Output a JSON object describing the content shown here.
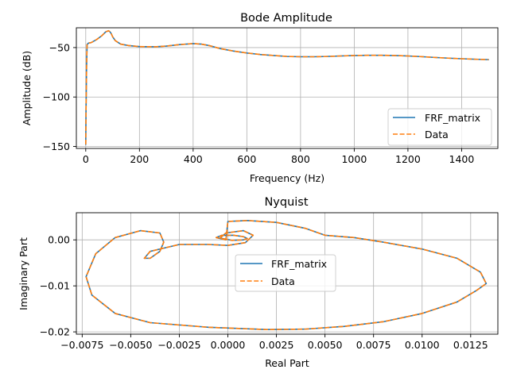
{
  "chart_data": [
    {
      "type": "line",
      "title": "Bode Amplitude",
      "xlabel": "Frequency (Hz)",
      "ylabel": "Amplitude (dB)",
      "xlim": [
        -35,
        1535
      ],
      "ylim": [
        -152,
        -30
      ],
      "xticks": [
        0,
        200,
        400,
        600,
        800,
        1000,
        1200,
        1400
      ],
      "yticks": [
        -150,
        -100,
        -50
      ],
      "grid": true,
      "legend": "bottom-right",
      "colors": {
        "series1": "#1f77b4",
        "series2": "#ff7f0e"
      },
      "series": [
        {
          "name": "FRF_matrix",
          "style": "solid",
          "x": [
            0,
            1,
            3,
            5,
            10,
            20,
            40,
            60,
            75,
            85,
            90,
            95,
            100,
            110,
            130,
            160,
            200,
            260,
            300,
            350,
            400,
            430,
            460,
            500,
            550,
            600,
            650,
            700,
            750,
            800,
            850,
            900,
            950,
            1000,
            1050,
            1100,
            1150,
            1200,
            1250,
            1300,
            1350,
            1400,
            1450,
            1500
          ],
          "y": [
            -148,
            -115,
            -70,
            -47,
            -45.5,
            -45,
            -42,
            -38,
            -34,
            -33,
            -34,
            -36,
            -39,
            -43,
            -46.5,
            -48,
            -49,
            -49.2,
            -48.5,
            -47,
            -46,
            -46.5,
            -48,
            -51,
            -53.5,
            -55.5,
            -57,
            -58,
            -59,
            -59.3,
            -59.3,
            -59,
            -58.5,
            -58,
            -57.8,
            -57.8,
            -58,
            -58.5,
            -59.2,
            -60,
            -60.7,
            -61.3,
            -61.8,
            -62.2
          ]
        },
        {
          "name": "Data",
          "style": "dashed",
          "x": [
            0,
            1,
            3,
            5,
            10,
            20,
            40,
            60,
            75,
            85,
            90,
            95,
            100,
            110,
            130,
            160,
            200,
            260,
            300,
            350,
            400,
            430,
            460,
            500,
            550,
            600,
            650,
            700,
            750,
            800,
            850,
            900,
            950,
            1000,
            1050,
            1100,
            1150,
            1200,
            1250,
            1300,
            1350,
            1400,
            1450,
            1500
          ],
          "y": [
            -148,
            -115,
            -70,
            -47,
            -45.5,
            -45,
            -42,
            -38,
            -34,
            -33,
            -34,
            -36,
            -39,
            -43,
            -46.5,
            -48,
            -49,
            -49.2,
            -48.5,
            -47,
            -46,
            -46.5,
            -48,
            -51,
            -53.5,
            -55.5,
            -57,
            -58,
            -59,
            -59.3,
            -59.3,
            -59,
            -58.5,
            -58,
            -57.8,
            -57.8,
            -58,
            -58.5,
            -59.2,
            -60,
            -60.7,
            -61.3,
            -61.8,
            -62.2
          ]
        }
      ]
    },
    {
      "type": "line",
      "title": "Nyquist",
      "xlabel": "Real Part",
      "ylabel": "Imaginary Part",
      "xlim": [
        -0.0078,
        0.0139
      ],
      "ylim": [
        -0.0205,
        0.0059
      ],
      "xticks": [
        -0.0075,
        -0.005,
        -0.0025,
        0.0,
        0.0025,
        0.005,
        0.0075,
        0.01,
        0.0125
      ],
      "xtick_labels": [
        "−0.0075",
        "−0.0050",
        "−0.0025",
        "0.0000",
        "0.0025",
        "0.0050",
        "0.0075",
        "0.0100",
        "0.0125"
      ],
      "yticks": [
        -0.02,
        -0.01,
        0.0
      ],
      "ytick_labels": [
        "−0.02",
        "−0.01",
        "0.00"
      ],
      "grid": true,
      "legend": "center",
      "colors": {
        "series1": "#1f77b4",
        "series2": "#ff7f0e"
      },
      "series": [
        {
          "name": "FRF_matrix",
          "style": "solid",
          "x": [
            -0.0001,
            -0.0006,
            -0.0003,
            0.0003,
            0.0008,
            0.001,
            0.0008,
            0.0002,
            -0.0004,
            -0.0001,
            0.0008,
            0.0013,
            0.0009,
            0.0,
            -0.001,
            -0.0025,
            -0.004,
            -0.0043,
            -0.004,
            -0.0035,
            -0.0033,
            -0.0035,
            -0.0045,
            -0.0058,
            -0.0068,
            -0.0073,
            -0.007,
            -0.0058,
            -0.004,
            -0.001,
            0.002,
            0.004,
            0.006,
            0.008,
            0.01,
            0.0118,
            0.0128,
            0.0133,
            0.013,
            0.0118,
            0.01,
            0.008,
            0.0065,
            0.005,
            0.004,
            0.0025,
            0.001,
            0.0,
            -0.0001
          ],
          "y": [
            0.0,
            0.0005,
            0.001,
            0.001,
            0.0007,
            0.0003,
            0.0,
            -0.0001,
            0.0004,
            0.0015,
            0.002,
            0.001,
            -0.0006,
            -0.0012,
            -0.001,
            -0.001,
            -0.0025,
            -0.004,
            -0.004,
            -0.0025,
            -0.0005,
            0.0015,
            0.002,
            0.0005,
            -0.003,
            -0.008,
            -0.012,
            -0.016,
            -0.018,
            -0.019,
            -0.0195,
            -0.0194,
            -0.0188,
            -0.0178,
            -0.016,
            -0.0135,
            -0.011,
            -0.0095,
            -0.007,
            -0.004,
            -0.002,
            -0.0005,
            0.0005,
            0.001,
            0.0025,
            0.0038,
            0.0042,
            0.004,
            0.0
          ]
        },
        {
          "name": "Data",
          "style": "dashed",
          "x": [
            -0.0001,
            -0.0006,
            -0.0003,
            0.0003,
            0.0008,
            0.001,
            0.0008,
            0.0002,
            -0.0004,
            -0.0001,
            0.0008,
            0.0013,
            0.0009,
            0.0,
            -0.001,
            -0.0025,
            -0.004,
            -0.0043,
            -0.004,
            -0.0035,
            -0.0033,
            -0.0035,
            -0.0045,
            -0.0058,
            -0.0068,
            -0.0073,
            -0.007,
            -0.0058,
            -0.004,
            -0.001,
            0.002,
            0.004,
            0.006,
            0.008,
            0.01,
            0.0118,
            0.0128,
            0.0133,
            0.013,
            0.0118,
            0.01,
            0.008,
            0.0065,
            0.005,
            0.004,
            0.0025,
            0.001,
            0.0,
            -0.0001
          ],
          "y": [
            0.0,
            0.0005,
            0.001,
            0.001,
            0.0007,
            0.0003,
            0.0,
            -0.0001,
            0.0004,
            0.0015,
            0.002,
            0.001,
            -0.0006,
            -0.0012,
            -0.001,
            -0.001,
            -0.0025,
            -0.004,
            -0.004,
            -0.0025,
            -0.0005,
            0.0015,
            0.002,
            0.0005,
            -0.003,
            -0.008,
            -0.012,
            -0.016,
            -0.018,
            -0.019,
            -0.0195,
            -0.0194,
            -0.0188,
            -0.0178,
            -0.016,
            -0.0135,
            -0.011,
            -0.0095,
            -0.007,
            -0.004,
            -0.002,
            -0.0005,
            0.0005,
            0.001,
            0.0025,
            0.0038,
            0.0042,
            0.004,
            0.0
          ]
        }
      ]
    }
  ]
}
